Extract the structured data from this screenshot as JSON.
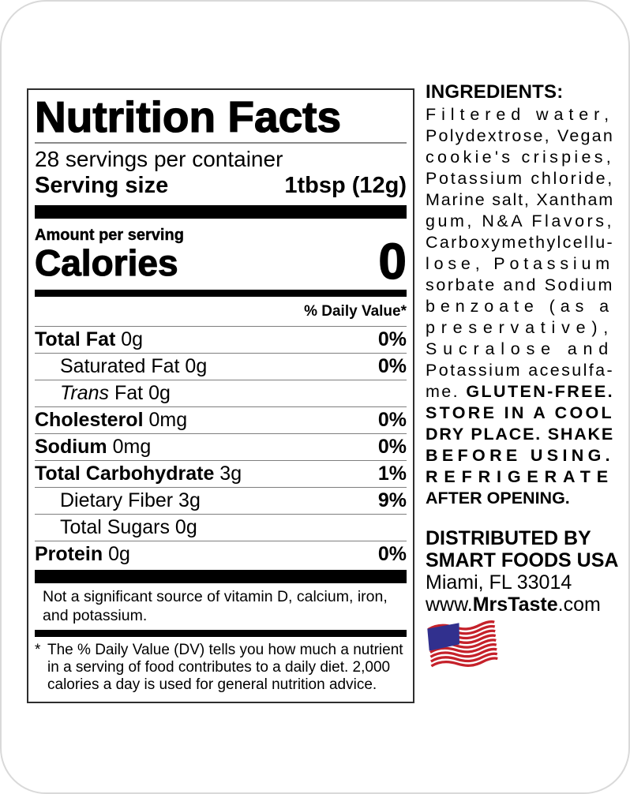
{
  "panel": {
    "title": "Nutrition Facts",
    "servings_per_container": "28 servings per container",
    "serving_size_label": "Serving size",
    "serving_size_value": "1tbsp (12g)",
    "amount_per_serving": "Amount per serving",
    "calories_label": "Calories",
    "calories_value": "0",
    "daily_value_header": "% Daily Value*",
    "rows": [
      {
        "parts": [
          {
            "text": "Total Fat ",
            "bold": true
          },
          {
            "text": "0g"
          }
        ],
        "dv": "0%",
        "indent": false
      },
      {
        "parts": [
          {
            "text": "Saturated Fat 0g"
          }
        ],
        "dv": "0%",
        "indent": true
      },
      {
        "parts": [
          {
            "text": "Trans",
            "italic": true
          },
          {
            "text": " Fat 0g"
          }
        ],
        "dv": "",
        "indent": true
      },
      {
        "parts": [
          {
            "text": "Cholesterol ",
            "bold": true
          },
          {
            "text": "0mg"
          }
        ],
        "dv": "0%",
        "indent": false
      },
      {
        "parts": [
          {
            "text": "Sodium ",
            "bold": true
          },
          {
            "text": "0mg"
          }
        ],
        "dv": "0%",
        "indent": false
      },
      {
        "parts": [
          {
            "text": "Total Carbohydrate ",
            "bold": true
          },
          {
            "text": "3g"
          }
        ],
        "dv": "1%",
        "indent": false
      },
      {
        "parts": [
          {
            "text": "Dietary Fiber 3g"
          }
        ],
        "dv": "9%",
        "indent": true
      },
      {
        "parts": [
          {
            "text": "Total Sugars 0g"
          }
        ],
        "dv": "",
        "indent": true
      },
      {
        "parts": [
          {
            "text": "Protein ",
            "bold": true
          },
          {
            "text": "0g"
          }
        ],
        "dv": "0%",
        "indent": false
      }
    ],
    "not_significant": "Not a significant source of vitamin D, calcium, iron, and potassium.",
    "footnote_marker": "*",
    "footnote": "The % Daily Value (DV) tells you how much a nutrient in a serving of food contributes to a daily diet. 2,000 calories a day is used for general nutrition advice."
  },
  "ingredients": {
    "heading": "INGREDIENTS:",
    "lines": [
      {
        "segs": [
          {
            "text": "Filtered water,"
          }
        ],
        "justify": true
      },
      {
        "segs": [
          {
            "text": "Polydextrose, Vegan"
          }
        ],
        "justify": true
      },
      {
        "segs": [
          {
            "text": "cookie's crispies,"
          }
        ],
        "justify": true
      },
      {
        "segs": [
          {
            "text": "Potassium chloride,"
          }
        ],
        "justify": true
      },
      {
        "segs": [
          {
            "text": "Marine salt, Xantham"
          }
        ],
        "justify": true
      },
      {
        "segs": [
          {
            "text": "gum, N&A Flavors,"
          }
        ],
        "justify": true
      },
      {
        "segs": [
          {
            "text": "Carboxymethylcellu-"
          }
        ],
        "justify": true
      },
      {
        "segs": [
          {
            "text": "lose, Potassium"
          }
        ],
        "justify": true
      },
      {
        "segs": [
          {
            "text": "sorbate and Sodium"
          }
        ],
        "justify": true
      },
      {
        "segs": [
          {
            "text": "benzoate (as a"
          }
        ],
        "justify": true
      },
      {
        "segs": [
          {
            "text": "preservative),"
          }
        ],
        "justify": true
      },
      {
        "segs": [
          {
            "text": "Sucralose and"
          }
        ],
        "justify": true
      },
      {
        "segs": [
          {
            "text": "Potassium acesulfa-"
          }
        ],
        "justify": true
      },
      {
        "segs": [
          {
            "text": "me. "
          },
          {
            "text": "GLUTEN-FREE.",
            "bold": true
          }
        ],
        "justify": true
      },
      {
        "segs": [
          {
            "text": "STORE IN A COOL",
            "bold": true
          }
        ],
        "justify": true
      },
      {
        "segs": [
          {
            "text": "DRY PLACE. SHAKE",
            "bold": true
          }
        ],
        "justify": true
      },
      {
        "segs": [
          {
            "text": "BEFORE USING.",
            "bold": true
          }
        ],
        "justify": true
      },
      {
        "segs": [
          {
            "text": "REFRIGERATE",
            "bold": true
          }
        ],
        "justify": true
      },
      {
        "segs": [
          {
            "text": "AFTER OPENING.",
            "bold": true
          }
        ],
        "justify": false
      }
    ]
  },
  "distributor": {
    "lines": [
      {
        "segs": [
          {
            "text": "DISTRIBUTED BY",
            "bold": true
          }
        ]
      },
      {
        "segs": [
          {
            "text": "SMART FOODS USA",
            "bold": true
          }
        ]
      },
      {
        "segs": [
          {
            "text": "Miami, FL 33014"
          }
        ]
      },
      {
        "segs": [
          {
            "text": "www."
          },
          {
            "text": "MrsTaste",
            "bold": true
          },
          {
            "text": ".com"
          }
        ]
      }
    ]
  },
  "flag": {
    "name": "us-flag",
    "blue": "#31308e",
    "red": "#c5212a",
    "stripe_count": 9
  },
  "colors": {
    "panel_border": "#2e2e2e",
    "thin_rule": "#7e7e7e",
    "bar": "#000000",
    "card_edge": "#d9d9d9"
  }
}
